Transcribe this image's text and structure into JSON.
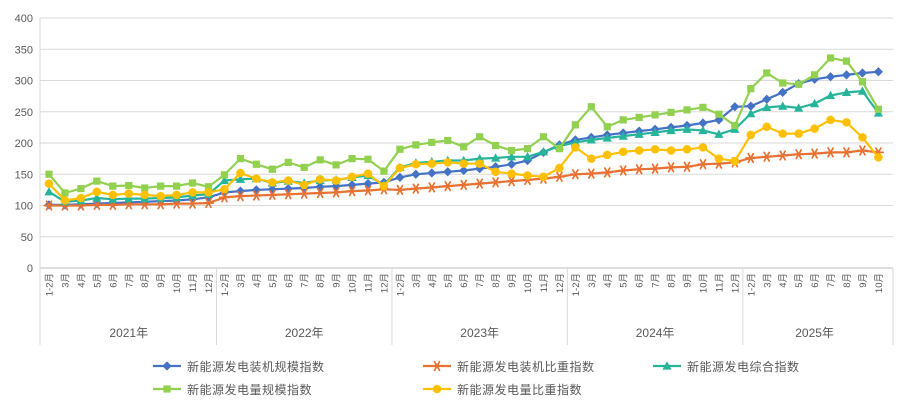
{
  "chart_data": {
    "type": "line",
    "title": "",
    "xlabel": "",
    "ylabel": "",
    "ylim": [
      0,
      400
    ],
    "yticks": [
      0,
      50,
      100,
      150,
      200,
      250,
      300,
      350,
      400
    ],
    "grid": "horizontal",
    "legend_position": "bottom",
    "years": [
      {
        "label": "2021年",
        "months": [
          "1-2月",
          "3月",
          "4月",
          "5月",
          "6月",
          "7月",
          "8月",
          "9月",
          "10月",
          "11月",
          "12月"
        ]
      },
      {
        "label": "2022年",
        "months": [
          "1-2月",
          "3月",
          "4月",
          "5月",
          "6月",
          "7月",
          "8月",
          "9月",
          "10月",
          "11月",
          "12月"
        ]
      },
      {
        "label": "2023年",
        "months": [
          "1-2月",
          "3月",
          "4月",
          "5月",
          "6月",
          "7月",
          "8月",
          "9月",
          "10月",
          "11月",
          "12月"
        ]
      },
      {
        "label": "2024年",
        "months": [
          "1-2月",
          "3月",
          "4月",
          "5月",
          "6月",
          "7月",
          "8月",
          "9月",
          "10月",
          "11月",
          "12月"
        ]
      },
      {
        "label": "2025年",
        "months": [
          "1-2月",
          "3月",
          "4月",
          "5月",
          "6月",
          "7月",
          "8月",
          "9月",
          "10月"
        ]
      }
    ],
    "series": [
      {
        "name": "新能源发电装机规模指数",
        "color": "#4472c4",
        "marker": "diamond",
        "values": [
          101,
          101,
          102,
          103,
          104,
          105,
          106,
          107,
          108,
          110,
          113,
          121,
          123,
          125,
          126,
          127,
          128,
          130,
          131,
          133,
          135,
          137,
          145,
          150,
          152,
          154,
          156,
          159,
          162,
          166,
          172,
          185,
          197,
          205,
          209,
          213,
          216,
          219,
          222,
          225,
          228,
          232,
          237,
          258,
          259,
          270,
          281,
          295,
          302,
          306,
          309,
          312,
          314
        ]
      },
      {
        "name": "新能源发电装机比重指数",
        "color": "#e97132",
        "marker": "asterisk",
        "values": [
          100,
          100,
          100,
          101,
          101,
          102,
          102,
          102,
          103,
          103,
          104,
          113,
          115,
          116,
          117,
          118,
          119,
          120,
          121,
          123,
          124,
          126,
          125,
          127,
          129,
          131,
          133,
          135,
          137,
          139,
          141,
          143,
          146,
          150,
          151,
          153,
          156,
          158,
          159,
          161,
          162,
          166,
          167,
          169,
          176,
          178,
          180,
          182,
          183,
          185,
          185,
          188,
          185
        ]
      },
      {
        "name": "新能源发电综合指数",
        "color": "#26b59a",
        "marker": "triangle",
        "values": [
          122,
          106,
          108,
          112,
          110,
          111,
          111,
          112,
          113,
          116,
          118,
          140,
          142,
          143,
          136,
          139,
          136,
          140,
          141,
          145,
          148,
          133,
          161,
          168,
          170,
          172,
          172,
          175,
          176,
          178,
          178,
          186,
          195,
          201,
          205,
          208,
          211,
          214,
          217,
          220,
          222,
          220,
          214,
          222,
          247,
          257,
          259,
          256,
          263,
          276,
          281,
          283,
          248
        ]
      },
      {
        "name": "新能源发电量规模指数",
        "color": "#92d050",
        "marker": "square",
        "values": [
          150,
          120,
          127,
          139,
          131,
          132,
          128,
          131,
          131,
          136,
          130,
          149,
          175,
          166,
          158,
          169,
          161,
          173,
          165,
          175,
          174,
          155,
          190,
          197,
          201,
          204,
          194,
          210,
          196,
          188,
          191,
          210,
          191,
          229,
          258,
          226,
          237,
          241,
          245,
          249,
          253,
          257,
          246,
          228,
          287,
          312,
          296,
          294,
          309,
          336,
          331,
          298,
          254
        ]
      },
      {
        "name": "新能源发电量比重指数",
        "color": "#ffc000",
        "marker": "circle",
        "values": [
          135,
          108,
          112,
          122,
          117,
          119,
          117,
          115,
          117,
          121,
          121,
          126,
          152,
          143,
          137,
          140,
          133,
          142,
          140,
          146,
          151,
          131,
          160,
          166,
          167,
          169,
          167,
          167,
          154,
          151,
          148,
          146,
          160,
          193,
          175,
          181,
          186,
          188,
          190,
          188,
          190,
          193,
          175,
          171,
          213,
          226,
          215,
          215,
          223,
          237,
          233,
          209,
          177
        ]
      }
    ],
    "axis_text_color": "#595959",
    "gridline_color": "#d9d9d9",
    "axis_line_color": "#bfbfbf"
  }
}
